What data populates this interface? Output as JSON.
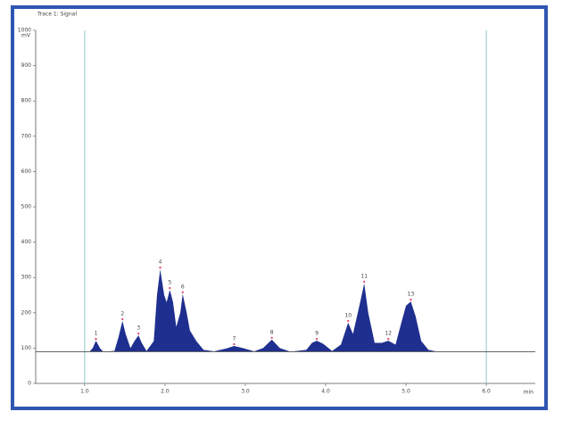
{
  "chart_data": {
    "type": "area",
    "title": "Trace 1: Signal",
    "y_label": "mV",
    "x_label": "min",
    "color": "#1f2f8f",
    "xlim": [
      0.39,
      6.61
    ],
    "ylim": [
      0,
      1000
    ],
    "xticks": [
      {
        "value": 1,
        "label": "1.0"
      },
      {
        "value": 2,
        "label": "2.0"
      },
      {
        "value": 3,
        "label": "3.0"
      },
      {
        "value": 4,
        "label": "4.0"
      },
      {
        "value": 5,
        "label": "5.0"
      },
      {
        "value": 6,
        "label": "6.0"
      }
    ],
    "yticks": [
      0,
      100,
      200,
      300,
      400,
      500,
      600,
      700,
      800,
      900,
      1000
    ],
    "baseline": 90,
    "cursors": [
      1,
      6
    ],
    "x": [
      0.39,
      1.06,
      1.1,
      1.14,
      1.19,
      1.23,
      1.37,
      1.42,
      1.47,
      1.51,
      1.57,
      1.62,
      1.67,
      1.71,
      1.77,
      1.86,
      1.9,
      1.94,
      1.99,
      2.02,
      2.06,
      2.1,
      2.14,
      2.19,
      2.22,
      2.27,
      2.31,
      2.39,
      2.48,
      2.61,
      2.78,
      2.86,
      2.97,
      3.11,
      3.22,
      3.33,
      3.43,
      3.56,
      3.76,
      3.83,
      3.89,
      3.97,
      4.08,
      4.19,
      4.28,
      4.34,
      4.42,
      4.48,
      4.53,
      4.61,
      4.7,
      4.78,
      4.87,
      4.94,
      5.0,
      5.06,
      5.12,
      5.19,
      5.28,
      5.39,
      6.61
    ],
    "values": [
      90,
      90,
      100,
      121,
      100,
      90,
      92,
      130,
      177,
      140,
      100,
      120,
      136,
      115,
      92,
      120,
      250,
      323,
      250,
      230,
      265,
      230,
      160,
      200,
      253,
      200,
      150,
      120,
      95,
      91,
      100,
      106,
      100,
      91,
      100,
      124,
      100,
      90,
      95,
      115,
      121,
      112,
      92,
      110,
      172,
      140,
      220,
      283,
      200,
      115,
      115,
      121,
      110,
      170,
      220,
      232,
      190,
      120,
      95,
      90,
      90
    ],
    "peaks": {
      "labels": [
        "1",
        "2",
        "3",
        "4",
        "5",
        "6",
        "7",
        "8",
        "9",
        "10",
        "11",
        "12",
        "13"
      ],
      "x": [
        1.14,
        1.47,
        1.67,
        1.94,
        2.06,
        2.22,
        2.86,
        3.33,
        3.89,
        4.28,
        4.48,
        4.78,
        5.06
      ],
      "values": [
        121,
        177,
        136,
        323,
        265,
        253,
        106,
        124,
        121,
        172,
        283,
        121,
        232
      ],
      "color": "#e0507a"
    }
  }
}
